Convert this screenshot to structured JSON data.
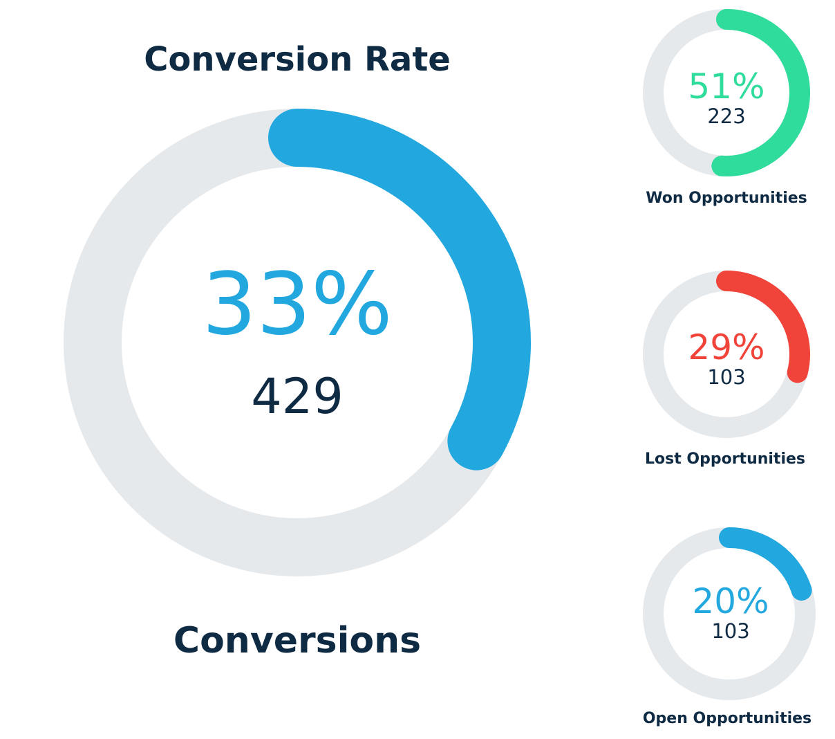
{
  "chart_data": [
    {
      "type": "donut",
      "title": "Conversion Rate",
      "subtitle": "Conversions",
      "percent_label": "33%",
      "value": 33,
      "count_label": "429",
      "color": "#22a8df",
      "track_color": "#e6e9ec"
    },
    {
      "type": "donut",
      "label": "Won Opportunities",
      "percent_label": "51%",
      "value": 51,
      "count_label": "223",
      "color": "#2fdc9b",
      "track_color": "#e6e9ec"
    },
    {
      "type": "donut",
      "label": "Lost Opportunities",
      "percent_label": "29%",
      "value": 29,
      "count_label": "103",
      "color": "#f0433a",
      "track_color": "#e6e9ec"
    },
    {
      "type": "donut",
      "label": "Open Opportunities",
      "percent_label": "20%",
      "value": 20,
      "count_label": "103",
      "color": "#22a8df",
      "track_color": "#e6e9ec"
    }
  ]
}
